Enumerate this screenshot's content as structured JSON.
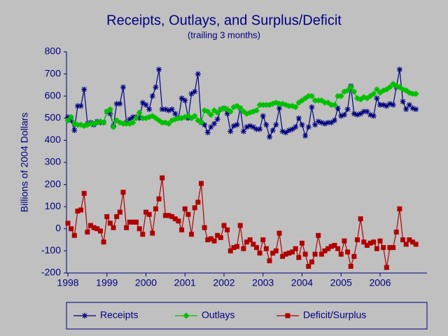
{
  "chart_data": {
    "type": "line",
    "title": "Receipts, Outlays, and Surplus/Deficit",
    "subtitle": "(trailing 3 months)",
    "y_label": "Billions of 2004 Dollars",
    "categories": [
      "1998",
      null,
      null,
      null,
      null,
      null,
      null,
      null,
      null,
      null,
      null,
      null,
      "1999",
      null,
      null,
      null,
      null,
      null,
      null,
      null,
      null,
      null,
      null,
      null,
      "2000",
      null,
      null,
      null,
      null,
      null,
      null,
      null,
      null,
      null,
      null,
      null,
      "2001",
      null,
      null,
      null,
      null,
      null,
      null,
      null,
      null,
      null,
      null,
      null,
      "2002",
      null,
      null,
      null,
      null,
      null,
      null,
      null,
      null,
      null,
      null,
      null,
      "2003",
      null,
      null,
      null,
      null,
      null,
      null,
      null,
      null,
      null,
      null,
      null,
      "2004",
      null,
      null,
      null,
      null,
      null,
      null,
      null,
      null,
      null,
      null,
      null,
      "2005",
      null,
      null,
      null,
      null,
      null,
      null,
      null,
      null,
      null,
      null,
      null,
      "2006",
      null,
      null,
      null,
      null,
      null,
      null,
      null,
      null,
      null,
      null,
      null
    ],
    "series": [
      {
        "name": "Receipts",
        "color": "#000080",
        "marker": "asterisk",
        "values": [
          505,
          490,
          445,
          555,
          555,
          630,
          475,
          480,
          470,
          485,
          480,
          480,
          530,
          520,
          465,
          565,
          565,
          640,
          480,
          495,
          505,
          505,
          500,
          570,
          560,
          540,
          600,
          640,
          720,
          540,
          540,
          535,
          540,
          520,
          500,
          590,
          580,
          500,
          610,
          620,
          700,
          480,
          470,
          435,
          460,
          475,
          495,
          540,
          545,
          520,
          440,
          465,
          470,
          545,
          440,
          460,
          465,
          460,
          450,
          450,
          510,
          470,
          415,
          445,
          470,
          545,
          440,
          435,
          445,
          450,
          460,
          500,
          470,
          420,
          460,
          550,
          470,
          485,
          480,
          475,
          480,
          480,
          490,
          545,
          510,
          515,
          540,
          645,
          520,
          515,
          520,
          530,
          530,
          515,
          510,
          590,
          560,
          560,
          555,
          565,
          560,
          640,
          720,
          575,
          540,
          560,
          545,
          540
        ]
      },
      {
        "name": "Outlays",
        "color": "#00c000",
        "marker": "plus",
        "values": [
          490,
          505,
          475,
          470,
          470,
          465,
          470,
          475,
          475,
          480,
          485,
          480,
          530,
          540,
          460,
          490,
          480,
          475,
          475,
          475,
          480,
          500,
          525,
          500,
          500,
          505,
          510,
          500,
          490,
          480,
          480,
          475,
          490,
          495,
          500,
          500,
          505,
          510,
          500,
          510,
          490,
          480,
          535,
          530,
          515,
          535,
          525,
          540,
          545,
          540,
          530,
          550,
          555,
          545,
          530,
          520,
          525,
          530,
          535,
          560,
          560,
          560,
          560,
          565,
          570,
          565,
          565,
          560,
          555,
          555,
          550,
          570,
          580,
          590,
          600,
          600,
          580,
          580,
          580,
          570,
          570,
          560,
          560,
          600,
          600,
          620,
          625,
          640,
          620,
          590,
          585,
          595,
          590,
          600,
          610,
          630,
          615,
          625,
          630,
          640,
          655,
          645,
          640,
          630,
          625,
          615,
          610,
          610
        ]
      },
      {
        "name": "Deficit/Surplus",
        "color": "#b00000",
        "marker": "square",
        "values": [
          25,
          0,
          -30,
          80,
          85,
          160,
          -15,
          15,
          5,
          0,
          -10,
          -60,
          55,
          25,
          5,
          55,
          75,
          165,
          5,
          30,
          30,
          30,
          0,
          -25,
          75,
          65,
          -20,
          90,
          135,
          230,
          60,
          60,
          55,
          45,
          35,
          -5,
          90,
          65,
          -25,
          95,
          120,
          205,
          5,
          -50,
          -45,
          -55,
          -30,
          -40,
          15,
          -5,
          -100,
          -85,
          -80,
          15,
          -90,
          -60,
          -50,
          -70,
          -85,
          -110,
          -50,
          -90,
          -145,
          -110,
          -100,
          -20,
          -125,
          -115,
          -110,
          -105,
          -90,
          -130,
          -65,
          -115,
          -170,
          -150,
          -115,
          -30,
          -115,
          -100,
          -90,
          -80,
          -75,
          -90,
          -115,
          -55,
          -105,
          -170,
          -125,
          -50,
          45,
          -60,
          -75,
          -65,
          -60,
          -90,
          -55,
          -85,
          -175,
          -85,
          -85,
          -15,
          90,
          -50,
          -70,
          -50,
          -60,
          -70
        ]
      }
    ],
    "ylim": [
      -200,
      800
    ],
    "yticks": [
      -200,
      -100,
      0,
      100,
      200,
      300,
      400,
      500,
      600,
      700,
      800
    ],
    "grid": false,
    "legend": "bottom"
  }
}
